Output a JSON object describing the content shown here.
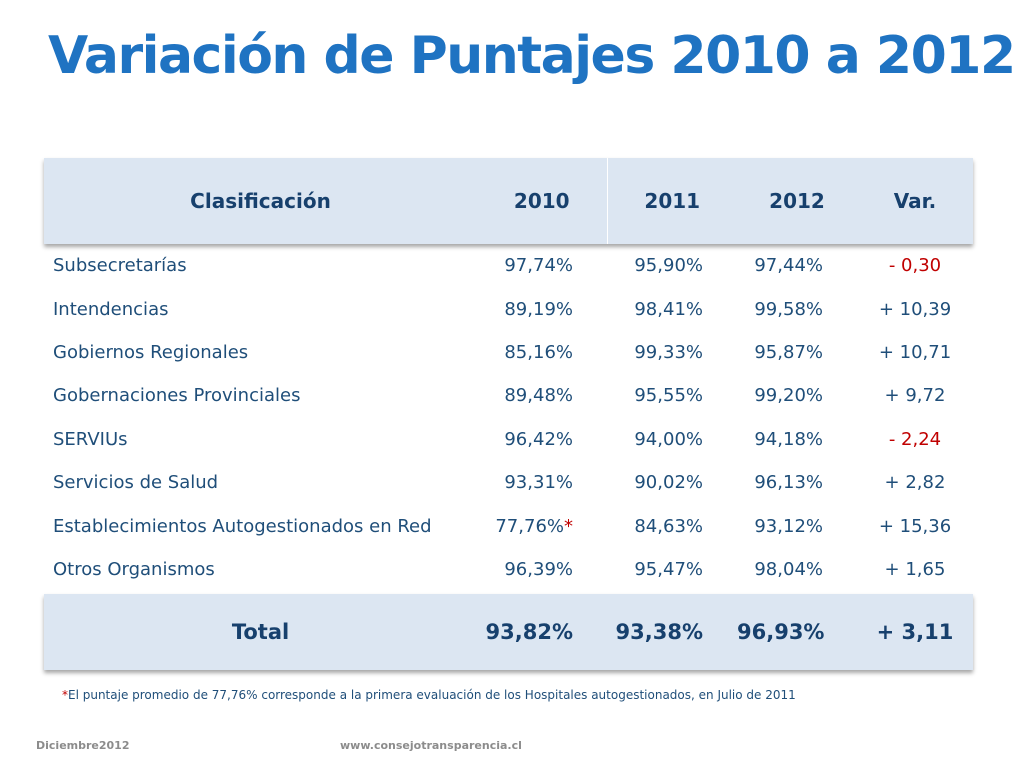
{
  "title": "Variación de Puntajes 2010 a 2012",
  "table": {
    "headers": [
      "Clasificación",
      "2010",
      "2011",
      "2012",
      "Var."
    ],
    "rows": [
      {
        "name": "Subsecretarías",
        "y2010": "97,74%",
        "y2011": "95,90%",
        "y2012": "97,44%",
        "var": "- 0,30",
        "var_negative": true
      },
      {
        "name": "Intendencias",
        "y2010": "89,19%",
        "y2011": "98,41%",
        "y2012": "99,58%",
        "var": "+ 10,39",
        "var_negative": false
      },
      {
        "name": "Gobiernos Regionales",
        "y2010": "85,16%",
        "y2011": "99,33%",
        "y2012": "95,87%",
        "var": "+ 10,71",
        "var_negative": false
      },
      {
        "name": "Gobernaciones Provinciales",
        "y2010": "89,48%",
        "y2011": "95,55%",
        "y2012": "99,20%",
        "var": "+ 9,72",
        "var_negative": false
      },
      {
        "name": "SERVIUs",
        "y2010": "96,42%",
        "y2011": "94,00%",
        "y2012": "94,18%",
        "var": "- 2,24",
        "var_negative": true
      },
      {
        "name": "Servicios de Salud",
        "y2010": "93,31%",
        "y2011": "90,02%",
        "y2012": "96,13%",
        "var": "+ 2,82",
        "var_negative": false
      },
      {
        "name": "Establecimientos Autogestionados en Red",
        "y2010": "77,76%",
        "y2010_marker": "*",
        "y2011": "84,63%",
        "y2012": "93,12%",
        "var": "+ 15,36",
        "var_negative": false
      },
      {
        "name": "Otros Organismos",
        "y2010": "96,39%",
        "y2011": "95,47%",
        "y2012": "98,04%",
        "var": "+ 1,65",
        "var_negative": false
      }
    ],
    "total": {
      "label": "Total",
      "y2010": "93,82%",
      "y2011": "93,38%",
      "y2012": "96,93%",
      "var": "+ 3,11"
    }
  },
  "footnote": {
    "marker": "*",
    "text": "El puntaje promedio de 77,76% corresponde a la primera evaluación de los Hospitales autogestionados, en Julio de 2011"
  },
  "footer": {
    "date": "Diciembre2012",
    "url": "www.consejotransparencia.cl"
  },
  "colors": {
    "title": "#1f73c2",
    "header_bg": "#dce6f2",
    "text": "#1f4e79",
    "negative": "#c00000"
  }
}
